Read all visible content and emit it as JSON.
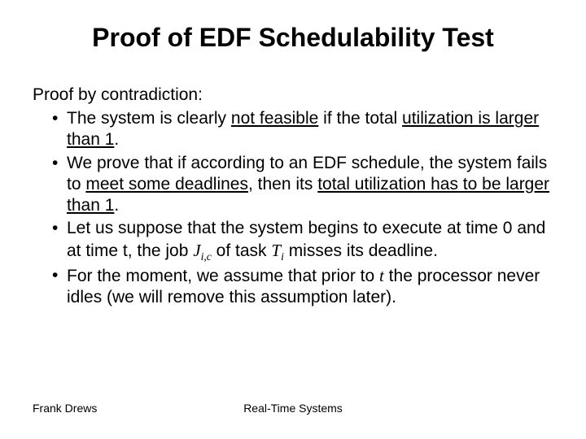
{
  "title": "Proof of EDF Schedulability Test",
  "lead": "Proof by contradiction:",
  "bullets": [
    {
      "pre": "The system is clearly ",
      "u1": "not feasible",
      "mid1": " if the total ",
      "u2": "utilization is larger than 1",
      "post": "."
    },
    {
      "pre": "We prove that if according to an EDF schedule, the system fails to ",
      "u1": "meet some deadlines",
      "mid1": ", then its ",
      "u2": "total utilization has to be larger than 1",
      "post": "."
    },
    {
      "pre": "Let us suppose that the system begins to execute at time 0 and at time t, the job ",
      "jic": "J",
      "jic_sub": "i,c",
      "mid1": " of task ",
      "ti": "T",
      "ti_sub": "i",
      "post": " misses its deadline."
    },
    {
      "pre": "For the moment, we assume that prior to ",
      "t": "t",
      "post": " the processor never idles (we will remove this assumption later)."
    }
  ],
  "footer": {
    "left": "Frank Drews",
    "center": "Real-Time Systems"
  }
}
